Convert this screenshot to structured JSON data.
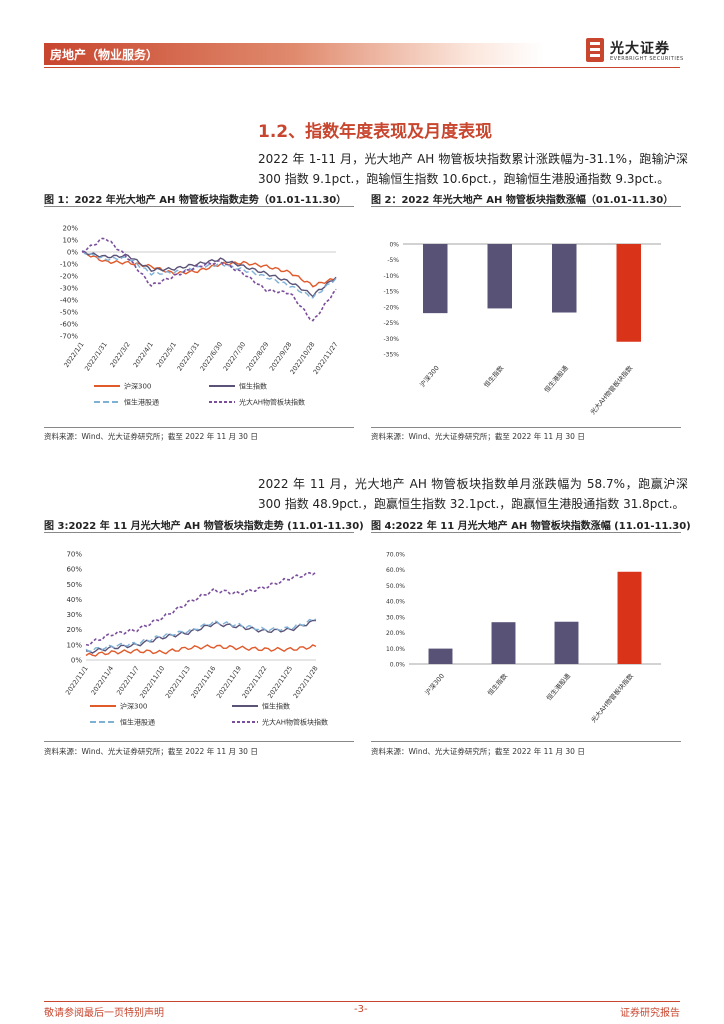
{
  "header": {
    "category": "房地产（物业服务）",
    "logo_cn": "光大证券",
    "logo_en": "EVERBRIGHT SECURITIES",
    "accent": "#c8452e"
  },
  "section": {
    "title": "1.2、指数年度表现及月度表现",
    "para1": "2022 年 1-11 月，光大地产 AH 物管板块指数累计涨跌幅为-31.1%，跑输沪深 300 指数 9.1pct.，跑输恒生指数 10.6pct.，跑输恒生港股通指数 9.3pct.。",
    "para2": "2022 年 11 月，光大地产 AH 物管板块指数单月涨跌幅为 58.7%，跑赢沪深 300 指数 48.9pct.，跑赢恒生指数 32.1pct.，跑赢恒生港股通指数 31.8pct.。"
  },
  "fig1": {
    "title": "图 1：2022 年光大地产 AH 物管板块指数走势（01.01-11.30）",
    "source": "资料来源：Wind、光大证券研究所；截至 2022 年 11 月 30 日"
  },
  "fig2": {
    "title": "图 2：2022 年光大地产 AH 物管板块指数涨幅（01.01-11.30）",
    "source": "资料来源：Wind、光大证券研究所；截至 2022 年 11 月 30 日"
  },
  "fig3": {
    "title": "图 3:2022 年 11 月光大地产 AH 物管板块指数走势 (11.01-11.30)",
    "source": "资料来源：Wind、光大证券研究所；截至 2022 年 11 月 30 日"
  },
  "fig4": {
    "title": "图 4:2022 年 11 月光大地产 AH 物管板块指数涨幅 (11.01-11.30)",
    "source": "资料来源：Wind、光大证券研究所；截至 2022 年 11 月 30 日"
  },
  "footer": {
    "left": "敬请参阅最后一页特别声明",
    "center": "-3-",
    "right": "证券研究报告"
  },
  "chart_data": [
    {
      "type": "line",
      "x": [
        "2022/1/1",
        "2022/1/31",
        "2022/3/2",
        "2022/4/1",
        "2022/5/1",
        "2022/5/31",
        "2022/6/30",
        "2022/7/30",
        "2022/8/29",
        "2022/9/28",
        "2022/10/28",
        "2022/11/27"
      ],
      "ylim": [
        -0.7,
        0.2
      ],
      "yticks": [
        "20%",
        "10%",
        "0%",
        "-10%",
        "-20%",
        "-30%",
        "-40%",
        "-50%",
        "-60%",
        "-70%"
      ],
      "series": [
        {
          "name": "沪深300",
          "color": "#e05a2b",
          "dash": "",
          "values": [
            0,
            -0.08,
            -0.09,
            -0.12,
            -0.18,
            -0.16,
            -0.1,
            -0.09,
            -0.12,
            -0.17,
            -0.28,
            -0.22
          ]
        },
        {
          "name": "恒生指数",
          "color": "#5a5377",
          "dash": "",
          "values": [
            0,
            -0.04,
            -0.03,
            -0.15,
            -0.14,
            -0.1,
            -0.06,
            -0.12,
            -0.18,
            -0.25,
            -0.36,
            -0.21
          ]
        },
        {
          "name": "恒生港股通",
          "color": "#7fb0d6",
          "dash": "6,3",
          "values": [
            0,
            -0.06,
            -0.05,
            -0.18,
            -0.17,
            -0.13,
            -0.1,
            -0.15,
            -0.21,
            -0.28,
            -0.38,
            -0.22
          ]
        },
        {
          "name": "光大AH物管板块指数",
          "color": "#7b4e9c",
          "dash": "3,2",
          "values": [
            0,
            0.12,
            -0.05,
            -0.28,
            -0.2,
            -0.12,
            -0.08,
            -0.18,
            -0.32,
            -0.34,
            -0.58,
            -0.31
          ]
        }
      ]
    },
    {
      "type": "bar",
      "categories": [
        "沪深300",
        "恒生指数",
        "恒生港股通",
        "光大AH物管板块指数"
      ],
      "values": [
        -22.0,
        -20.5,
        -21.8,
        -31.1
      ],
      "colors": [
        "#585277",
        "#585277",
        "#585277",
        "#d9331a"
      ],
      "ylim": [
        -35,
        0
      ],
      "yticks": [
        "0%",
        "-5%",
        "-10%",
        "-15%",
        "-20%",
        "-25%",
        "-30%",
        "-35%"
      ]
    },
    {
      "type": "line",
      "x": [
        "2022/11/1",
        "2022/11/4",
        "2022/11/7",
        "2022/11/10",
        "2022/11/13",
        "2022/11/16",
        "2022/11/19",
        "2022/11/22",
        "2022/11/25",
        "2022/11/28"
      ],
      "ylim": [
        0,
        0.7
      ],
      "yticks": [
        "70%",
        "60%",
        "50%",
        "40%",
        "30%",
        "20%",
        "10%",
        "0%"
      ],
      "series": [
        {
          "name": "沪深300",
          "color": "#e05a2b",
          "dash": "",
          "values": [
            0.03,
            0.05,
            0.06,
            0.05,
            0.08,
            0.09,
            0.08,
            0.07,
            0.07,
            0.09
          ]
        },
        {
          "name": "恒生指数",
          "color": "#5a5377",
          "dash": "",
          "values": [
            0.05,
            0.08,
            0.1,
            0.15,
            0.18,
            0.24,
            0.22,
            0.19,
            0.2,
            0.26
          ]
        },
        {
          "name": "恒生港股通",
          "color": "#7fb0d6",
          "dash": "6,3",
          "values": [
            0.06,
            0.09,
            0.11,
            0.16,
            0.19,
            0.25,
            0.23,
            0.2,
            0.21,
            0.27
          ]
        },
        {
          "name": "光大AH物管板块指数",
          "color": "#7b4e9c",
          "dash": "3,2",
          "values": [
            0.1,
            0.17,
            0.2,
            0.28,
            0.38,
            0.46,
            0.44,
            0.48,
            0.54,
            0.58
          ]
        }
      ]
    },
    {
      "type": "bar",
      "categories": [
        "沪深300",
        "恒生指数",
        "恒生港股通",
        "光大AH物管板块指数"
      ],
      "values": [
        9.8,
        26.6,
        26.9,
        58.7
      ],
      "colors": [
        "#585277",
        "#585277",
        "#585277",
        "#d9331a"
      ],
      "ylim": [
        0,
        70
      ],
      "yticks": [
        "70.0%",
        "60.0%",
        "50.0%",
        "40.0%",
        "30.0%",
        "20.0%",
        "10.0%",
        "0.0%"
      ]
    }
  ]
}
